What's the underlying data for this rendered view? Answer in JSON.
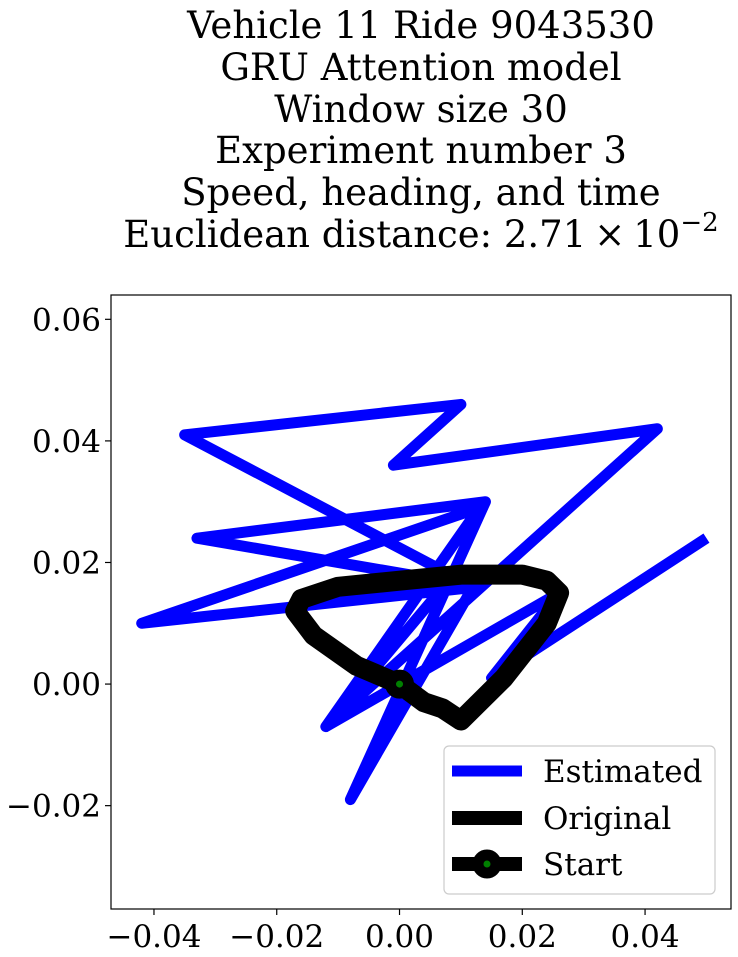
{
  "chart_data": {
    "type": "line",
    "title_lines": [
      "Vehicle 11 Ride 9043530",
      "GRU Attention model",
      "Window size 30",
      "Experiment number 3",
      "Speed, heading, and time"
    ],
    "title_distance": {
      "prefix": "Euclidean distance: 2.71",
      "times": "×",
      "base": "10",
      "exponent": "−2"
    },
    "xlabel": "",
    "ylabel": "",
    "xlim": [
      -0.047,
      0.054
    ],
    "ylim": [
      -0.037,
      0.064
    ],
    "xticks": [
      -0.04,
      -0.02,
      0.0,
      0.02,
      0.04
    ],
    "xtick_labels": [
      "−0.04",
      "−0.02",
      "0.00",
      "0.02",
      "0.04"
    ],
    "yticks": [
      -0.02,
      0.0,
      0.02,
      0.04,
      0.06
    ],
    "ytick_labels": [
      "−0.02",
      "0.00",
      "0.02",
      "0.04",
      "0.06"
    ],
    "grid": false,
    "legend_position": "lower-right",
    "series": [
      {
        "name": "Estimated",
        "color": "#0000ff",
        "x": [
          0.05,
          0.015,
          0.026,
          -0.012,
          0.013,
          -0.042,
          0.013,
          -0.033,
          0.014,
          -0.008,
          0.012,
          -0.035,
          0.01,
          -0.001,
          0.042,
          -0.012,
          0.008
        ],
        "y": [
          0.024,
          0.001,
          0.015,
          -0.007,
          0.029,
          0.01,
          0.016,
          0.024,
          0.03,
          -0.019,
          0.016,
          0.041,
          0.046,
          0.036,
          0.042,
          -0.007,
          0.017
        ]
      },
      {
        "name": "Original",
        "color": "#000000",
        "x": [
          0.0,
          -0.007,
          -0.014,
          -0.017,
          -0.016,
          -0.01,
          0.0,
          0.01,
          0.02,
          0.024,
          0.026,
          0.024,
          0.017,
          0.01,
          0.007,
          0.004,
          0.0
        ],
        "y": [
          0.0,
          0.003,
          0.008,
          0.012,
          0.014,
          0.016,
          0.017,
          0.018,
          0.018,
          0.017,
          0.015,
          0.01,
          0.001,
          -0.006,
          -0.004,
          -0.003,
          0.0
        ]
      }
    ],
    "start_point": {
      "name": "Start",
      "x": 0.0,
      "y": 0.0,
      "color": "#008000",
      "edge_color": "#000000"
    }
  }
}
